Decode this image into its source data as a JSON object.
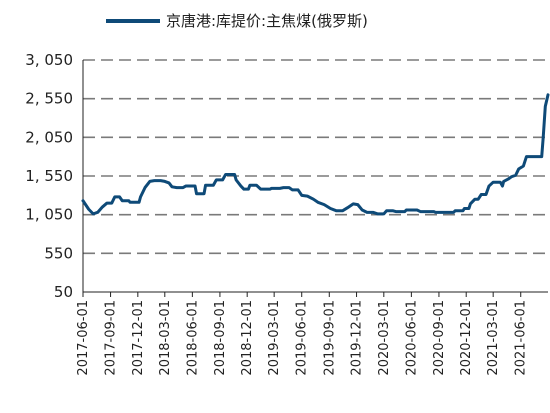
{
  "chart_data": {
    "type": "line",
    "legend": {
      "position": "top",
      "entries": [
        "京唐港:库提价:主焦煤(俄罗斯)"
      ]
    },
    "colors": {
      "series": "#0e4a78",
      "grid": "#7a7a7a",
      "axis": "#222222"
    },
    "grid": true,
    "ylim": [
      50,
      3050
    ],
    "y_ticks": [
      50,
      550,
      1050,
      1550,
      2050,
      2550,
      3050
    ],
    "y_tick_labels": [
      "50",
      "550",
      "1, 050",
      "1, 550",
      "2, 050",
      "2, 550",
      "3, 050"
    ],
    "x_tick_labels": [
      "2017-06-01",
      "2017-09-01",
      "2017-12-01",
      "2018-03-01",
      "2018-06-01",
      "2018-09-01",
      "2018-12-01",
      "2019-03-01",
      "2019-06-01",
      "2019-09-01",
      "2019-12-01",
      "2020-03-01",
      "2020-06-01",
      "2020-09-01",
      "2020-12-01",
      "2021-03-01",
      "2021-06-01"
    ],
    "x_start": "2017-06-01",
    "x_end": "2021-08-31",
    "series": [
      {
        "name": "京唐港:库提价:主焦煤(俄罗斯)",
        "points": [
          [
            "2017-06-01",
            1230
          ],
          [
            "2017-06-20",
            1120
          ],
          [
            "2017-07-05",
            1060
          ],
          [
            "2017-07-20",
            1080
          ],
          [
            "2017-08-05",
            1150
          ],
          [
            "2017-08-20",
            1200
          ],
          [
            "2017-09-05",
            1200
          ],
          [
            "2017-09-15",
            1280
          ],
          [
            "2017-10-01",
            1280
          ],
          [
            "2017-10-10",
            1230
          ],
          [
            "2017-11-01",
            1230
          ],
          [
            "2017-11-05",
            1210
          ],
          [
            "2017-12-05",
            1210
          ],
          [
            "2017-12-10",
            1280
          ],
          [
            "2017-12-25",
            1400
          ],
          [
            "2018-01-10",
            1480
          ],
          [
            "2018-01-25",
            1490
          ],
          [
            "2018-02-15",
            1490
          ],
          [
            "2018-03-01",
            1480
          ],
          [
            "2018-03-15",
            1460
          ],
          [
            "2018-03-25",
            1410
          ],
          [
            "2018-04-10",
            1400
          ],
          [
            "2018-05-01",
            1400
          ],
          [
            "2018-05-10",
            1420
          ],
          [
            "2018-06-10",
            1420
          ],
          [
            "2018-06-15",
            1320
          ],
          [
            "2018-07-10",
            1320
          ],
          [
            "2018-07-15",
            1430
          ],
          [
            "2018-08-10",
            1430
          ],
          [
            "2018-08-20",
            1500
          ],
          [
            "2018-09-10",
            1500
          ],
          [
            "2018-09-20",
            1570
          ],
          [
            "2018-10-20",
            1570
          ],
          [
            "2018-10-25",
            1500
          ],
          [
            "2018-11-10",
            1420
          ],
          [
            "2018-11-20",
            1380
          ],
          [
            "2018-12-05",
            1380
          ],
          [
            "2018-12-10",
            1430
          ],
          [
            "2019-01-01",
            1430
          ],
          [
            "2019-01-15",
            1380
          ],
          [
            "2019-02-15",
            1380
          ],
          [
            "2019-02-20",
            1390
          ],
          [
            "2019-03-20",
            1390
          ],
          [
            "2019-04-01",
            1400
          ],
          [
            "2019-04-20",
            1400
          ],
          [
            "2019-05-01",
            1370
          ],
          [
            "2019-05-20",
            1370
          ],
          [
            "2019-06-01",
            1300
          ],
          [
            "2019-06-20",
            1290
          ],
          [
            "2019-07-10",
            1250
          ],
          [
            "2019-07-25",
            1210
          ],
          [
            "2019-08-15",
            1180
          ],
          [
            "2019-09-05",
            1130
          ],
          [
            "2019-09-25",
            1100
          ],
          [
            "2019-10-15",
            1100
          ],
          [
            "2019-11-01",
            1140
          ],
          [
            "2019-11-20",
            1190
          ],
          [
            "2019-12-05",
            1180
          ],
          [
            "2019-12-20",
            1110
          ],
          [
            "2020-01-05",
            1080
          ],
          [
            "2020-01-25",
            1080
          ],
          [
            "2020-02-10",
            1060
          ],
          [
            "2020-03-01",
            1060
          ],
          [
            "2020-03-10",
            1100
          ],
          [
            "2020-04-01",
            1100
          ],
          [
            "2020-04-10",
            1090
          ],
          [
            "2020-05-10",
            1090
          ],
          [
            "2020-05-15",
            1110
          ],
          [
            "2020-06-20",
            1110
          ],
          [
            "2020-07-01",
            1090
          ],
          [
            "2020-08-15",
            1090
          ],
          [
            "2020-08-20",
            1080
          ],
          [
            "2020-10-20",
            1080
          ],
          [
            "2020-10-25",
            1100
          ],
          [
            "2020-11-20",
            1100
          ],
          [
            "2020-11-25",
            1130
          ],
          [
            "2020-12-10",
            1130
          ],
          [
            "2020-12-15",
            1190
          ],
          [
            "2020-12-30",
            1250
          ],
          [
            "2021-01-10",
            1250
          ],
          [
            "2021-01-20",
            1310
          ],
          [
            "2021-02-05",
            1310
          ],
          [
            "2021-02-15",
            1420
          ],
          [
            "2021-03-01",
            1470
          ],
          [
            "2021-03-25",
            1470
          ],
          [
            "2021-04-01",
            1420
          ],
          [
            "2021-04-05",
            1480
          ],
          [
            "2021-04-20",
            1510
          ],
          [
            "2021-05-01",
            1540
          ],
          [
            "2021-05-15",
            1560
          ],
          [
            "2021-05-25",
            1640
          ],
          [
            "2021-06-10",
            1680
          ],
          [
            "2021-06-20",
            1800
          ],
          [
            "2021-08-10",
            1800
          ],
          [
            "2021-08-15",
            2050
          ],
          [
            "2021-08-22",
            2450
          ],
          [
            "2021-08-31",
            2600
          ]
        ]
      }
    ]
  }
}
